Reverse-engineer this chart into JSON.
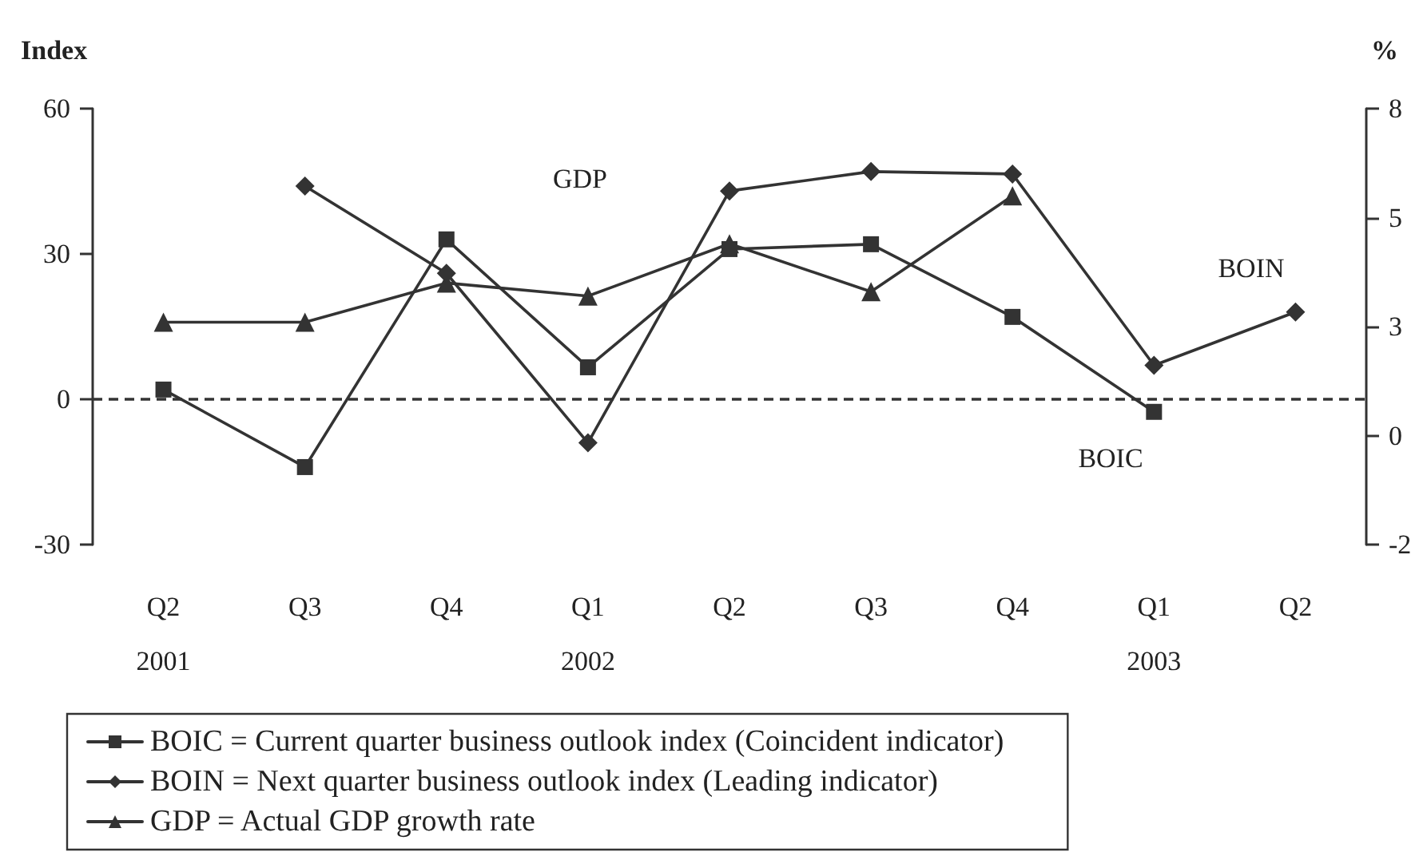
{
  "chart_data": {
    "type": "line",
    "xlabel": null,
    "ylabel": "Index",
    "y2label": "%",
    "categories": [
      "Q2\n2001",
      "Q3",
      "Q4",
      "Q1\n2002",
      "Q2",
      "Q3",
      "Q4",
      "Q1\n2003",
      "Q2"
    ],
    "series": [
      {
        "name": "BOIC = Current quarter business outlook index (Coincident indicator)",
        "color": "#333333",
        "marker": "square",
        "values": [
          2,
          -14,
          33,
          6.6,
          31,
          32,
          17,
          -2.6,
          null
        ]
      },
      {
        "name": "BOIN = Next quarter business outlook index (Leading indicator)",
        "color": "#333333",
        "marker": "diamond",
        "values": [
          null,
          44,
          26,
          -9,
          43,
          47,
          46.5,
          7,
          18
        ]
      },
      {
        "name": "GDP = Actual GDP growth rate",
        "color": "#333333",
        "marker": "triangle",
        "axis": "y2",
        "values": [
          3.1,
          3.1,
          4.0,
          3.7,
          4.9,
          3.8,
          6.0,
          null,
          null
        ]
      }
    ],
    "ylim": [
      -30,
      60
    ],
    "yticks": [
      -30,
      0,
      30,
      60
    ],
    "y2lim": [
      -2,
      8
    ],
    "y2ticks": [
      -2,
      {
        "value": 0.5,
        "label": "0"
      },
      3,
      {
        "value": 5.5,
        "label": "5"
      },
      8
    ],
    "ref_lines": [
      {
        "axis": "y",
        "value": 0,
        "color": "#333333",
        "line_style": "dashed"
      }
    ],
    "annotations": [
      "GDP",
      "BOIN",
      "BOIC"
    ],
    "legend": "bottom",
    "grid": false
  }
}
